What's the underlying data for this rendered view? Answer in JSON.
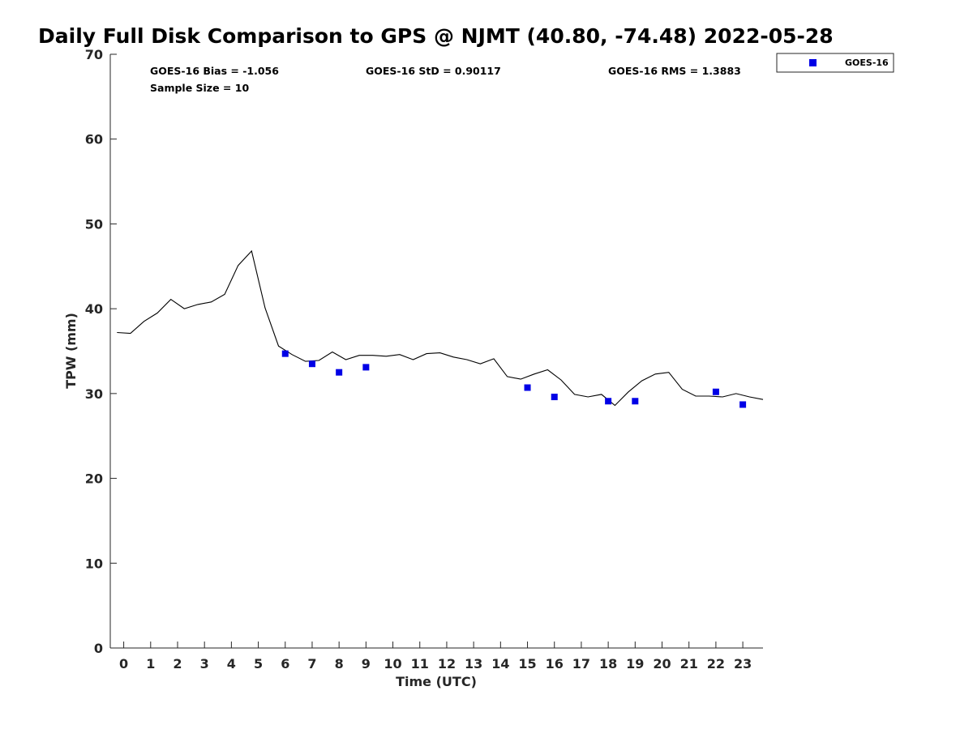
{
  "title": "Daily Full Disk Comparison to GPS @ NJMT (40.80, -74.48) 2022-05-28",
  "stats": {
    "bias": "GOES-16 Bias = -1.056",
    "std": "GOES-16 StD = 0.90117",
    "rms": "GOES-16 RMS = 1.3883",
    "sample": "Sample Size = 10"
  },
  "legend": {
    "label": "GOES-16"
  },
  "colors": {
    "goes": "#0000e6",
    "gps_line": "#000000",
    "axis": "#262626"
  },
  "chart_data": {
    "type": "line",
    "title": "Daily Full Disk Comparison to GPS @ NJMT (40.80, -74.48) 2022-05-28",
    "xlabel": "Time (UTC)",
    "ylabel": "TPW (mm)",
    "xlim": [
      -0.5,
      23.75
    ],
    "ylim": [
      0,
      70
    ],
    "xticks": [
      0,
      1,
      2,
      3,
      4,
      5,
      6,
      7,
      8,
      9,
      10,
      11,
      12,
      13,
      14,
      15,
      16,
      17,
      18,
      19,
      20,
      21,
      22,
      23
    ],
    "yticks": [
      0,
      10,
      20,
      30,
      40,
      50,
      60,
      70
    ],
    "grid": false,
    "legend_position": "top-right outside",
    "series": [
      {
        "style": "line",
        "x": [
          -0.25,
          0.25,
          0.75,
          1.25,
          1.75,
          2.25,
          2.75,
          3.25,
          3.75,
          4.25,
          4.75,
          5.25,
          5.75,
          6.25,
          6.75,
          7.25,
          7.75,
          8.25,
          8.75,
          9.25,
          9.75,
          10.25,
          10.75,
          11.25,
          11.75,
          12.25,
          12.75,
          13.25,
          13.75,
          14.25,
          14.75,
          15.25,
          15.75,
          16.25,
          16.75,
          17.25,
          17.75,
          18.25,
          18.75,
          19.25,
          19.75,
          20.25,
          20.75,
          21.25,
          21.75,
          22.25,
          22.75,
          23.25,
          23.75
        ],
        "y": [
          37.2,
          37.1,
          38.5,
          39.5,
          41.1,
          40.0,
          40.5,
          40.8,
          41.7,
          45.1,
          46.8,
          40.1,
          35.6,
          34.6,
          33.8,
          33.9,
          34.9,
          34.0,
          34.5,
          34.5,
          34.4,
          34.6,
          34.0,
          34.7,
          34.8,
          34.3,
          34.0,
          33.5,
          34.1,
          32.0,
          31.7,
          32.3,
          32.8,
          31.6,
          29.9,
          29.6,
          29.9,
          28.6,
          30.2,
          31.5,
          32.3,
          32.5,
          30.5,
          29.7,
          29.7,
          29.6,
          30.0,
          29.6,
          29.3
        ]
      },
      {
        "name": "GOES-16",
        "style": "scatter",
        "x": [
          6,
          7,
          8,
          9,
          15,
          16,
          18,
          19,
          22,
          23
        ],
        "y": [
          34.7,
          33.5,
          32.5,
          33.1,
          30.7,
          29.6,
          29.1,
          29.1,
          30.2,
          28.7
        ]
      }
    ]
  }
}
